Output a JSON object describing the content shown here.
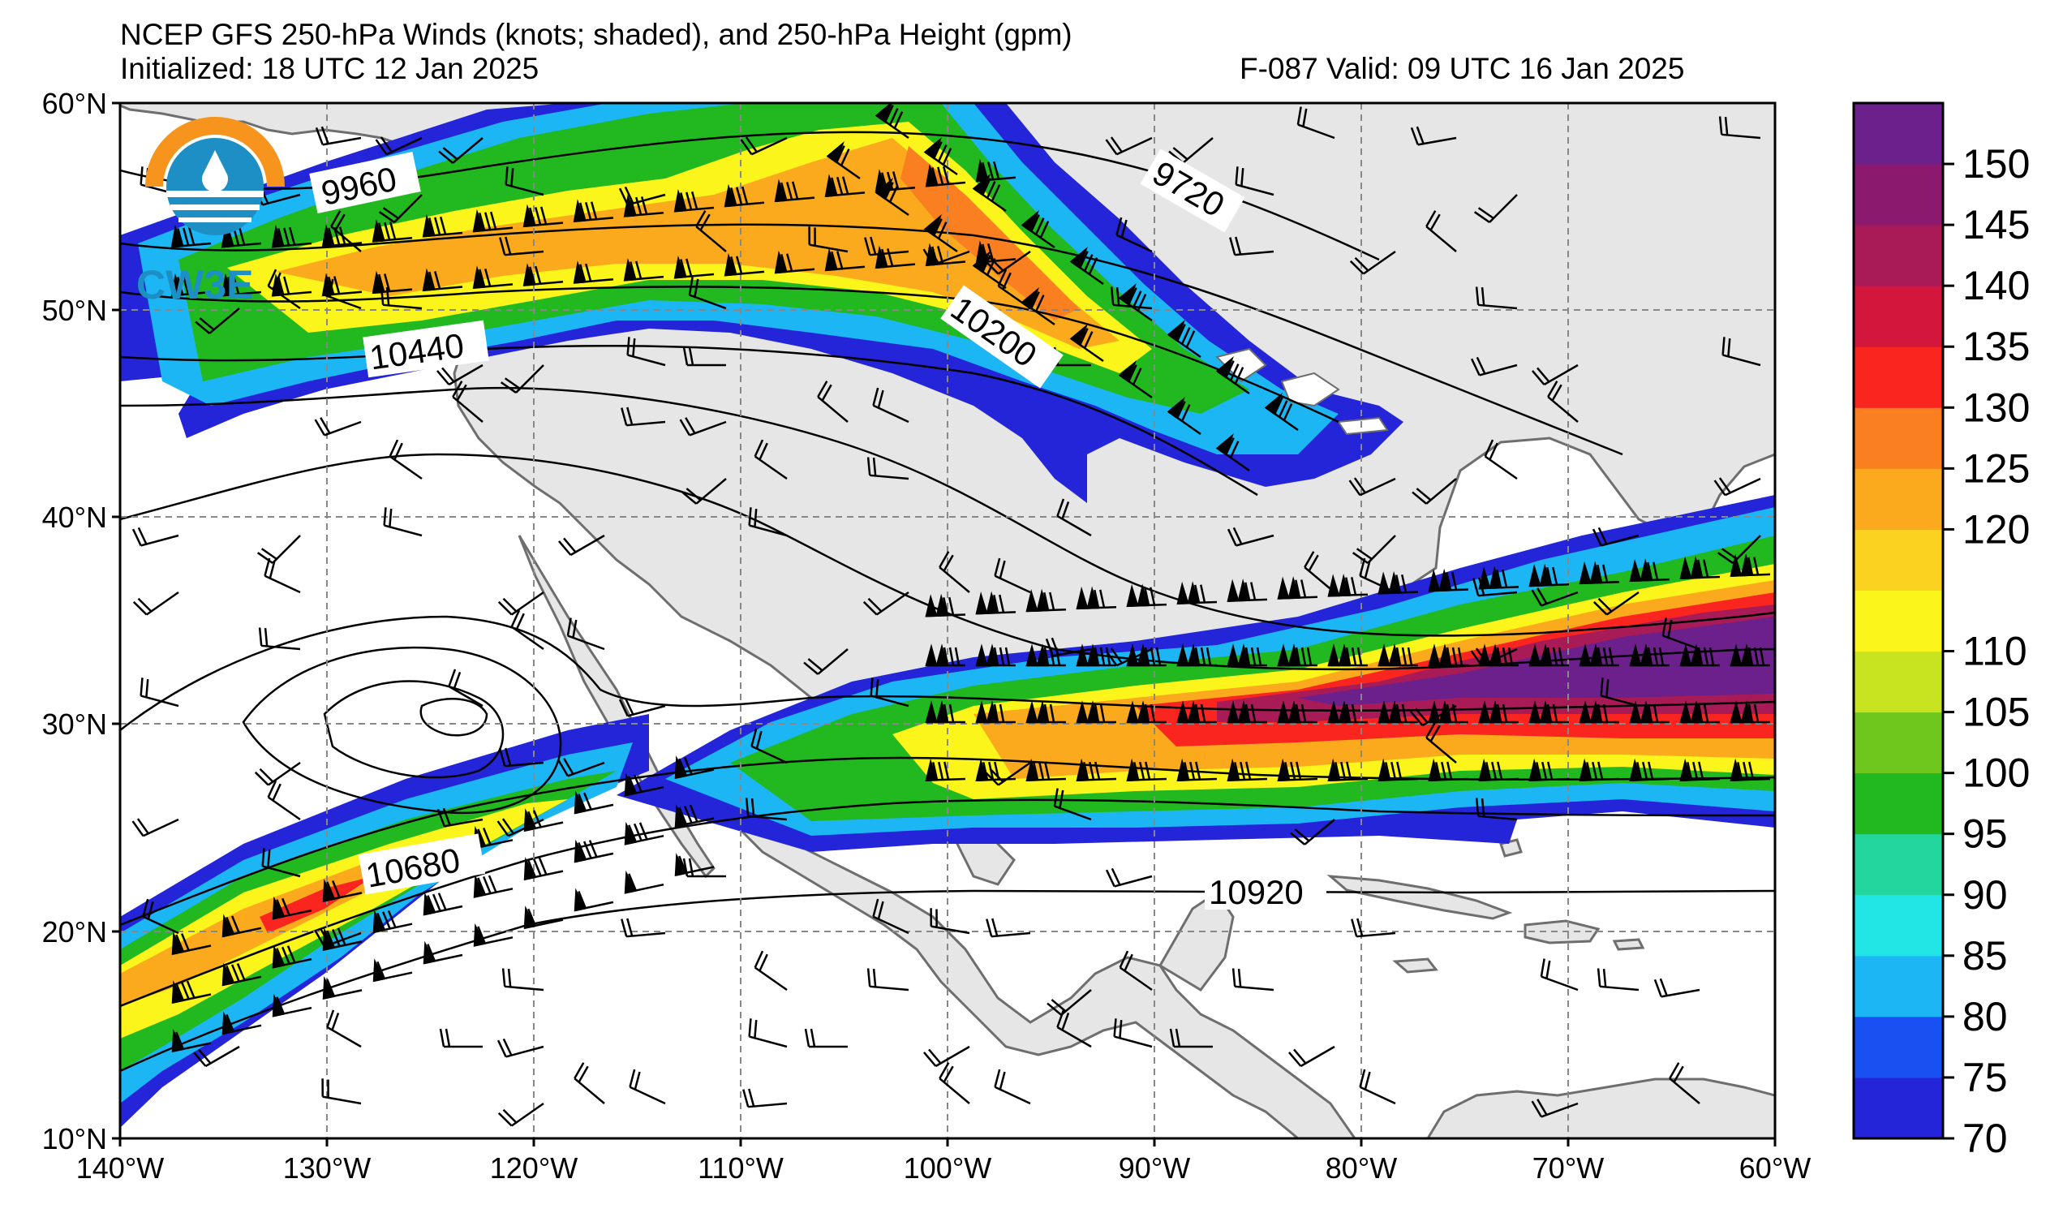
{
  "title": "NCEP GFS 250-hPa Winds (knots; shaded), and 250-hPa Height (gpm)",
  "initialized": "Initialized: 18 UTC 12 Jan 2025",
  "valid": "F-087  Valid: 09 UTC 16 Jan 2025",
  "logo_text": "CW3E",
  "lat_ticks": [
    "60°N",
    "50°N",
    "40°N",
    "30°N",
    "20°N",
    "10°N"
  ],
  "lon_ticks": [
    "140°W",
    "130°W",
    "120°W",
    "110°W",
    "100°W",
    "90°W",
    "80°W",
    "70°W",
    "60°W"
  ],
  "contour_labels": [
    "9960",
    "9720",
    "10440",
    "10200",
    "10680",
    "10920"
  ],
  "colorbar": {
    "ticks": [
      "70",
      "75",
      "80",
      "85",
      "90",
      "95",
      "100",
      "105",
      "110",
      "120",
      "125",
      "130",
      "135",
      "140",
      "145",
      "150"
    ],
    "levels": [
      70,
      75,
      80,
      85,
      90,
      95,
      100,
      105,
      110,
      115,
      120,
      125,
      130,
      135,
      140,
      145,
      150,
      155
    ],
    "colors": [
      "#2424d8",
      "#1950f2",
      "#1cb6f5",
      "#22e6e6",
      "#22d69e",
      "#21b91f",
      "#6fc71d",
      "#c8e420",
      "#fbf51c",
      "#fbd21f",
      "#fba91d",
      "#f97f21",
      "#fa251f",
      "#d3173c",
      "#a81b57",
      "#8b1a6f",
      "#6c208b"
    ]
  },
  "colors": {
    "land": "#e6e6e6",
    "ocean": "#ffffff",
    "coast": "#6e6e6e"
  }
}
